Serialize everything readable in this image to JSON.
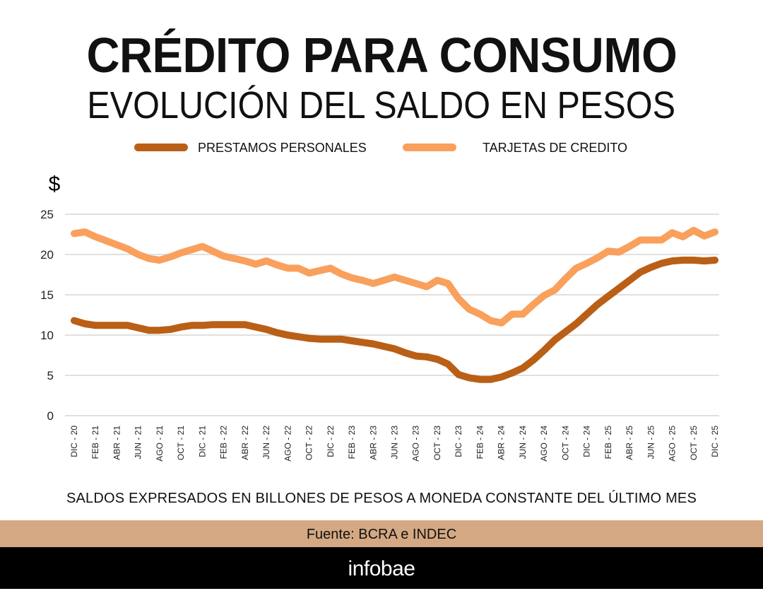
{
  "title": "CRÉDITO PARA CONSUMO",
  "subtitle": "EVOLUCIÓN DEL SALDO EN PESOS",
  "note": "SALDOS EXPRESADOS EN BILLONES DE PESOS A MONEDA CONSTANTE DEL ÚLTIMO MES",
  "source": "Fuente: BCRA e INDEC",
  "brand": "infobae",
  "colors": {
    "prestamos": "#BA5F16",
    "tarjetas": "#F9A05C",
    "source_band": "#D4A882",
    "footer": "#000000",
    "grid": "#E0E0E0"
  },
  "chart_data": {
    "type": "line",
    "ylabel": "$",
    "ylim": [
      0,
      25
    ],
    "yticks": [
      0,
      5,
      10,
      15,
      20,
      25
    ],
    "grid": true,
    "legend_position": "top",
    "x_tick_labels": [
      "DIC - 20",
      "FEB - 21",
      "ABR - 21",
      "JUN - 21",
      "AGO - 21",
      "OCT - 21",
      "DIC - 21",
      "FEB - 22",
      "ABR - 22",
      "JUN - 22",
      "AGO - 22",
      "OCT - 22",
      "DIC - 22",
      "FEB - 23",
      "ABR - 23",
      "JUN - 23",
      "AGO - 23",
      "OCT - 23",
      "DIC - 23",
      "FEB - 24",
      "ABR - 24",
      "JUN - 24",
      "AGO - 24",
      "OCT - 24",
      "DIC - 24",
      "FEB - 25",
      "ABR - 25",
      "JUN - 25",
      "AGO - 25",
      "OCT - 25",
      "DIC - 25"
    ],
    "x_range": [
      "DIC - 20",
      "DIC - 25"
    ],
    "frequency": "monthly",
    "series": [
      {
        "name": "PRESTAMOS PERSONALES",
        "color": "#BA5F16",
        "values": [
          11.8,
          11.4,
          11.2,
          11.2,
          11.2,
          11.2,
          10.9,
          10.6,
          10.6,
          10.7,
          11.0,
          11.2,
          11.2,
          11.3,
          11.3,
          11.3,
          11.3,
          11.0,
          10.7,
          10.3,
          10.0,
          9.8,
          9.6,
          9.5,
          9.5,
          9.5,
          9.3,
          9.1,
          8.9,
          8.6,
          8.3,
          7.8,
          7.4,
          7.3,
          7.0,
          6.4,
          5.1,
          4.7,
          4.5,
          4.5,
          4.8,
          5.3,
          5.9,
          6.9,
          8.1,
          9.4,
          10.4,
          11.4,
          12.6,
          13.8,
          14.8,
          15.8,
          16.8,
          17.8,
          18.4,
          18.9,
          19.2,
          19.3,
          19.3,
          19.2,
          19.3
        ]
      },
      {
        "name": "TARJETAS DE CREDITO",
        "color": "#F9A05C",
        "values": [
          22.6,
          22.8,
          22.2,
          21.7,
          21.2,
          20.7,
          20.0,
          19.5,
          19.3,
          19.7,
          20.2,
          20.6,
          21.0,
          20.4,
          19.8,
          19.5,
          19.2,
          18.8,
          19.2,
          18.7,
          18.3,
          18.3,
          17.7,
          18.0,
          18.3,
          17.6,
          17.1,
          16.8,
          16.4,
          16.8,
          17.2,
          16.8,
          16.4,
          16.0,
          16.8,
          16.4,
          14.5,
          13.2,
          12.6,
          11.8,
          11.5,
          12.6,
          12.6,
          13.8,
          14.9,
          15.6,
          17.0,
          18.3,
          18.9,
          19.6,
          20.4,
          20.3,
          21.0,
          21.8,
          21.8,
          21.8,
          22.7,
          22.2,
          23.0,
          22.3,
          22.8
        ]
      }
    ]
  }
}
